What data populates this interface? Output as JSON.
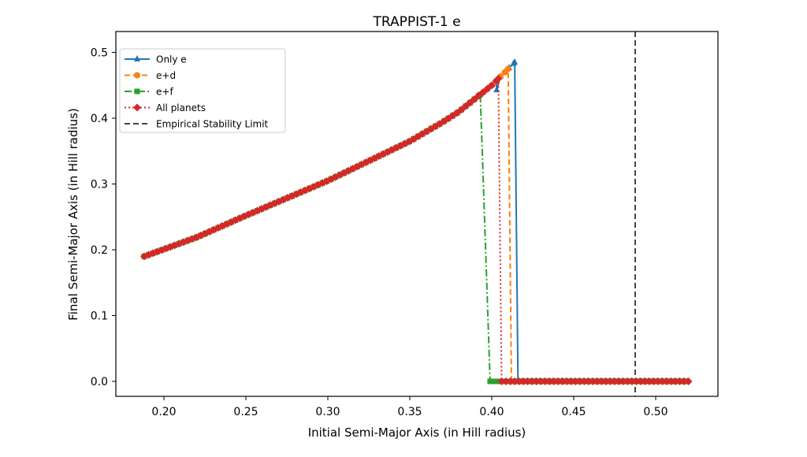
{
  "chart_data": {
    "type": "line",
    "title": "TRAPPIST-1 e",
    "xlabel": "Initial Semi-Major Axis (in Hill radius)",
    "ylabel": "Final Semi-Major Axis (in Hill radius)",
    "xlim": [
      0.171,
      0.532
    ],
    "ylim": [
      -0.022,
      0.52
    ],
    "xticks": [
      "0.20",
      "0.25",
      "0.30",
      "0.35",
      "0.40",
      "0.45",
      "0.50"
    ],
    "xtick_values": [
      0.2,
      0.25,
      0.3,
      0.35,
      0.4,
      0.45,
      0.5
    ],
    "yticks": [
      "0.0",
      "0.1",
      "0.2",
      "0.3",
      "0.4",
      "0.5"
    ],
    "ytick_values": [
      0,
      0.1,
      0.2,
      0.3,
      0.4,
      0.5
    ],
    "x_step": 0.00265,
    "x_start": 0.188,
    "x_end": 0.52,
    "stable_curve": [
      [
        0.188,
        0.19
      ],
      [
        0.22,
        0.219
      ],
      [
        0.25,
        0.252
      ],
      [
        0.3,
        0.305
      ],
      [
        0.35,
        0.365
      ],
      [
        0.37,
        0.394
      ],
      [
        0.38,
        0.41
      ],
      [
        0.39,
        0.43
      ],
      [
        0.4,
        0.45
      ],
      [
        0.414,
        0.485
      ]
    ],
    "series": [
      {
        "name": "Only e",
        "color": "#1f77b4",
        "marker": "triangle",
        "dash": "",
        "last_stable_x": 0.414,
        "extra_points": [
          [
            0.403,
            0.443
          ]
        ]
      },
      {
        "name": "e+d",
        "color": "#ff7f0e",
        "marker": "circle",
        "dash": "7,4",
        "last_stable_x": 0.41,
        "extra_points": []
      },
      {
        "name": "e+f",
        "color": "#2ca02c",
        "marker": "square",
        "dash": "9,3,2,3",
        "last_stable_x": 0.393,
        "extra_points": [
          [
            0.399,
            0.0
          ]
        ]
      },
      {
        "name": "All planets",
        "color": "#d62728",
        "marker": "diamond",
        "dash": "2,3",
        "last_stable_x": 0.404,
        "extra_points": []
      }
    ],
    "reference_line": {
      "name": "Empirical Stability Limit",
      "x": 0.4875,
      "color": "#444444",
      "dash": "7,4"
    },
    "legend_position": "top-left",
    "grid": false
  }
}
